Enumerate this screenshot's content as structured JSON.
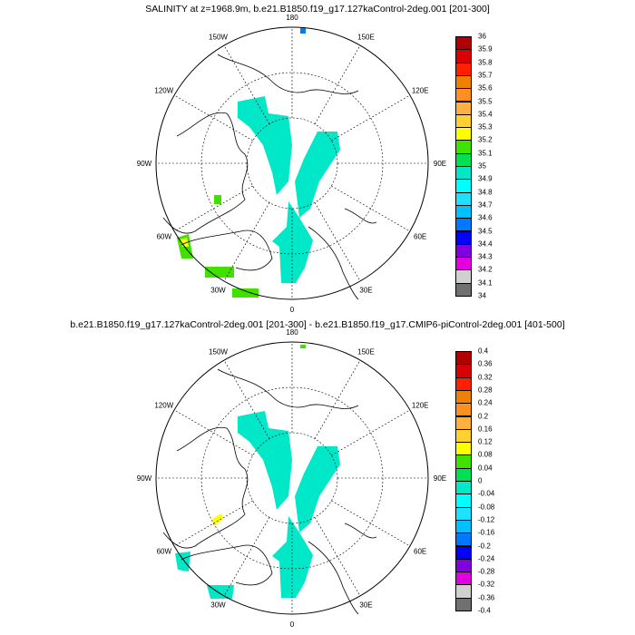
{
  "colors": [
    "#b00000",
    "#d80000",
    "#ff2000",
    "#f08000",
    "#ff9020",
    "#ffb040",
    "#ffd030",
    "#ffff00",
    "#40e000",
    "#00e050",
    "#00e8c8",
    "#00ffff",
    "#20e0ff",
    "#00c0ff",
    "#0078ff",
    "#0000ff",
    "#8000e0",
    "#e000e0",
    "#d0d0d0",
    "#707070"
  ],
  "meridian_labels": [
    "180",
    "150E",
    "120E",
    "90E",
    "60E",
    "30E",
    "0",
    "30W",
    "60W",
    "90W",
    "120W",
    "150W"
  ],
  "panels": [
    {
      "title": "SALINITY at z=1968.9m, b.e21.B1850.f19_g17.127kaControl-2deg.001 [201-300]",
      "colorbar_labels": [
        "36",
        "35.9",
        "35.8",
        "35.7",
        "35.6",
        "35.5",
        "35.4",
        "35.3",
        "35.2",
        "35.1",
        "35",
        "34.9",
        "34.8",
        "34.7",
        "34.6",
        "34.5",
        "34.4",
        "34.3",
        "34.2",
        "34.1",
        "34"
      ]
    },
    {
      "title": "b.e21.B1850.f19_g17.127kaControl-2deg.001 [201-300] - b.e21.B1850.f19_g17.CMIP6-piControl-2deg.001 [401-500]",
      "colorbar_labels": [
        "0.4",
        "0.36",
        "0.32",
        "0.28",
        "0.24",
        "0.2",
        "0.16",
        "0.12",
        "0.08",
        "0.04",
        "0",
        "-0.04",
        "-0.08",
        "-0.12",
        "-0.16",
        "-0.2",
        "-0.24",
        "-0.28",
        "-0.32",
        "-0.36",
        "-0.4"
      ]
    }
  ]
}
